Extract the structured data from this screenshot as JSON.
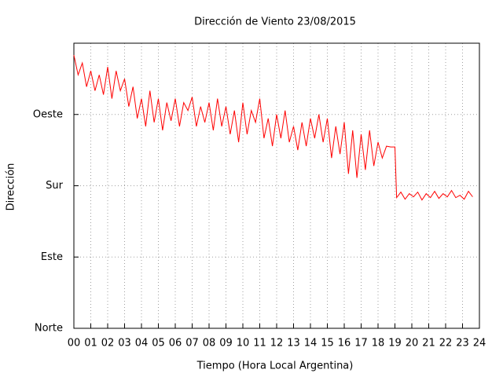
{
  "chart_data": {
    "type": "line",
    "title": "Dirección de Viento 23/08/2015",
    "xlabel": "Tiempo (Hora Local Argentina)",
    "ylabel": "Dirección",
    "x": [
      0,
      0.25,
      0.5,
      0.75,
      1,
      1.25,
      1.5,
      1.75,
      2,
      2.25,
      2.5,
      2.75,
      3,
      3.25,
      3.5,
      3.75,
      4,
      4.25,
      4.5,
      4.75,
      5,
      5.25,
      5.5,
      5.75,
      6,
      6.25,
      6.5,
      6.75,
      7,
      7.25,
      7.5,
      7.75,
      8,
      8.25,
      8.5,
      8.75,
      9,
      9.25,
      9.5,
      9.75,
      10,
      10.25,
      10.5,
      10.75,
      11,
      11.25,
      11.5,
      11.75,
      12,
      12.25,
      12.5,
      12.75,
      13,
      13.25,
      13.5,
      13.75,
      14,
      14.25,
      14.5,
      14.75,
      15,
      15.25,
      15.5,
      15.75,
      16,
      16.25,
      16.5,
      16.75,
      17,
      17.25,
      17.5,
      17.75,
      18,
      18.25,
      18.5,
      18.75,
      19,
      19.1,
      19.35,
      19.6,
      19.85,
      20.1,
      20.35,
      20.6,
      20.85,
      21.1,
      21.35,
      21.6,
      21.85,
      22.1,
      22.35,
      22.6,
      22.85,
      23.1,
      23.35,
      23.6
    ],
    "values": [
      345,
      320,
      335,
      305,
      325,
      300,
      320,
      295,
      330,
      290,
      325,
      300,
      315,
      280,
      305,
      265,
      290,
      255,
      300,
      260,
      290,
      250,
      285,
      262,
      290,
      255,
      285,
      275,
      292,
      255,
      280,
      260,
      285,
      250,
      290,
      255,
      280,
      245,
      275,
      235,
      285,
      245,
      275,
      260,
      290,
      240,
      265,
      230,
      270,
      240,
      275,
      235,
      255,
      225,
      260,
      230,
      265,
      240,
      270,
      235,
      265,
      215,
      255,
      220,
      260,
      195,
      250,
      190,
      245,
      200,
      250,
      205,
      235,
      215,
      230,
      229,
      229,
      165,
      172,
      163,
      170,
      166,
      172,
      162,
      170,
      165,
      173,
      164,
      170,
      166,
      174,
      165,
      168,
      163,
      173,
      166
    ],
    "color": "#ff0000",
    "xlim": [
      0,
      24
    ],
    "ylim": [
      0,
      360
    ],
    "xticks": [
      {
        "value": 0,
        "label": "00"
      },
      {
        "value": 1,
        "label": "01"
      },
      {
        "value": 2,
        "label": "02"
      },
      {
        "value": 3,
        "label": "03"
      },
      {
        "value": 4,
        "label": "04"
      },
      {
        "value": 5,
        "label": "05"
      },
      {
        "value": 6,
        "label": "06"
      },
      {
        "value": 7,
        "label": "07"
      },
      {
        "value": 8,
        "label": "08"
      },
      {
        "value": 9,
        "label": "09"
      },
      10,
      11,
      12,
      13,
      14,
      15,
      16,
      17,
      18,
      19,
      20,
      21,
      22,
      23,
      24
    ],
    "yticks": [
      {
        "value": 0,
        "label": "Norte"
      },
      {
        "value": 90,
        "label": "Este"
      },
      {
        "value": 180,
        "label": "Sur"
      },
      {
        "value": 270,
        "label": "Oeste"
      }
    ],
    "grid": true
  }
}
